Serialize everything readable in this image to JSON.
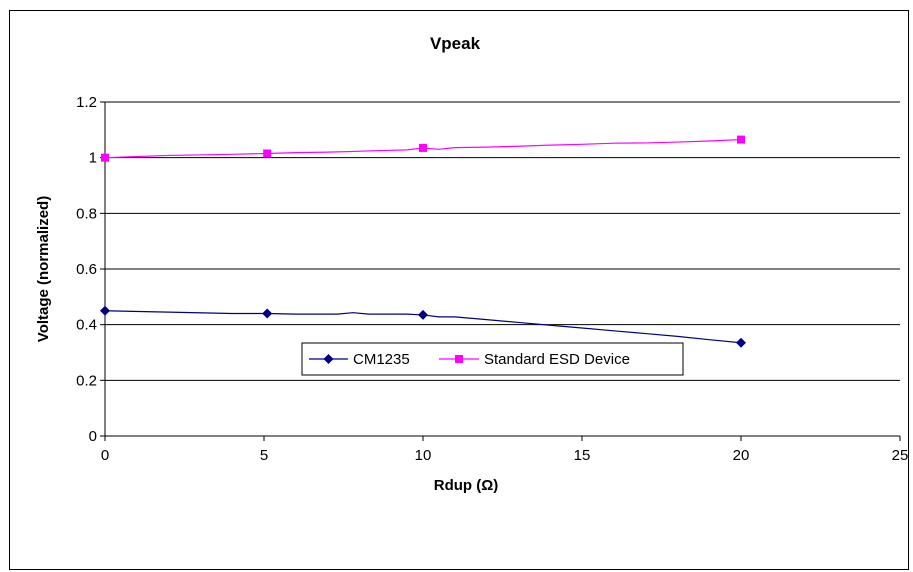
{
  "chart_data": {
    "type": "line",
    "title": "Vpeak",
    "xlabel": "Rdup (Ω)",
    "ylabel": "Voltage (normalized)",
    "xlim": [
      0,
      25
    ],
    "ylim": [
      0,
      1.2
    ],
    "xticks": [
      0,
      5,
      10,
      15,
      20,
      25
    ],
    "yticks": [
      0,
      0.2,
      0.4,
      0.6,
      0.8,
      1,
      1.2
    ],
    "xtick_labels": [
      "0",
      "5",
      "10",
      "15",
      "20",
      "25"
    ],
    "ytick_labels": [
      "0",
      "0.2",
      "0.4",
      "0.6",
      "0.8",
      "1",
      "1.2"
    ],
    "grid": "horizontal",
    "legend": "center-right",
    "series": [
      {
        "name": "CM1235",
        "color": "#000080",
        "marker": "diamond",
        "points": [
          [
            0,
            0.45
          ],
          [
            5.1,
            0.44
          ],
          [
            10,
            0.435
          ],
          [
            20,
            0.335
          ]
        ],
        "curve": [
          [
            0,
            0.45
          ],
          [
            2,
            0.445
          ],
          [
            4,
            0.44
          ],
          [
            5.1,
            0.44
          ],
          [
            6,
            0.438
          ],
          [
            7.3,
            0.438
          ],
          [
            7.8,
            0.443
          ],
          [
            8.3,
            0.438
          ],
          [
            9.5,
            0.438
          ],
          [
            10,
            0.435
          ],
          [
            10.5,
            0.428
          ],
          [
            11,
            0.428
          ],
          [
            12,
            0.418
          ],
          [
            13,
            0.408
          ],
          [
            14,
            0.398
          ],
          [
            15,
            0.388
          ],
          [
            16,
            0.378
          ],
          [
            17,
            0.368
          ],
          [
            18,
            0.358
          ],
          [
            19,
            0.346
          ],
          [
            20,
            0.335
          ]
        ]
      },
      {
        "name": "Standard ESD Device",
        "color": "#FF00FF",
        "marker": "square",
        "points": [
          [
            0,
            1.0
          ],
          [
            5.1,
            1.015
          ],
          [
            10,
            1.035
          ],
          [
            20,
            1.065
          ]
        ],
        "curve": [
          [
            0,
            1.0
          ],
          [
            2,
            1.008
          ],
          [
            4,
            1.012
          ],
          [
            5.1,
            1.015
          ],
          [
            6,
            1.018
          ],
          [
            7,
            1.02
          ],
          [
            7.7,
            1.022
          ],
          [
            8.5,
            1.025
          ],
          [
            9.5,
            1.028
          ],
          [
            10,
            1.035
          ],
          [
            10.5,
            1.03
          ],
          [
            11,
            1.036
          ],
          [
            12,
            1.038
          ],
          [
            13,
            1.041
          ],
          [
            14,
            1.045
          ],
          [
            15,
            1.048
          ],
          [
            16,
            1.052
          ],
          [
            17,
            1.053
          ],
          [
            18,
            1.056
          ],
          [
            19,
            1.06
          ],
          [
            20,
            1.065
          ]
        ]
      }
    ]
  }
}
